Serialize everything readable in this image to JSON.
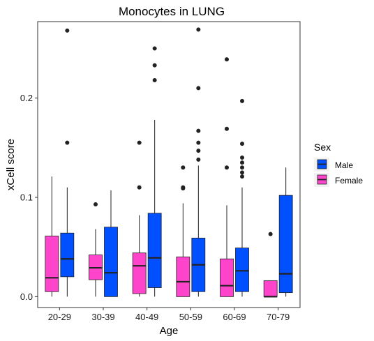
{
  "chart_data": {
    "type": "box",
    "title": "Monocytes in LUNG",
    "xlabel": "Age",
    "ylabel": "xCell score",
    "categories": [
      "20-29",
      "30-39",
      "40-49",
      "50-59",
      "60-69",
      "70-79"
    ],
    "ylim": [
      -0.011,
      0.277
    ],
    "yticks": [
      0.0,
      0.1,
      0.2
    ],
    "ytick_labels": [
      "0.0",
      "0.1",
      "0.2"
    ],
    "grid": false,
    "legend": {
      "title": "Sex",
      "position": "right",
      "entries": [
        {
          "label": "Male",
          "color": "#0050FF"
        },
        {
          "label": "Female",
          "color": "#FF44CC"
        }
      ]
    },
    "series": [
      {
        "name": "Female",
        "color": "#FF44CC",
        "boxes": [
          {
            "whisker_low": 0.0,
            "q1": 0.005,
            "median": 0.019,
            "q3": 0.061,
            "whisker_high": 0.121,
            "outliers": []
          },
          {
            "whisker_low": 0.0,
            "q1": 0.017,
            "median": 0.029,
            "q3": 0.042,
            "whisker_high": 0.068,
            "outliers": [
              0.093
            ]
          },
          {
            "whisker_low": 0.0,
            "q1": 0.003,
            "median": 0.031,
            "q3": 0.044,
            "whisker_high": 0.082,
            "outliers": [
              0.11,
              0.155
            ]
          },
          {
            "whisker_low": 0.0,
            "q1": 0.0,
            "median": 0.015,
            "q3": 0.04,
            "whisker_high": 0.094,
            "outliers": [
              0.109,
              0.11,
              0.13
            ]
          },
          {
            "whisker_low": 0.0,
            "q1": 0.0,
            "median": 0.011,
            "q3": 0.038,
            "whisker_high": 0.092,
            "outliers": [
              0.13,
              0.169,
              0.239
            ]
          },
          {
            "whisker_low": 0.0,
            "q1": 0.0,
            "median": 0.0,
            "q3": 0.016,
            "whisker_high": 0.016,
            "outliers": [
              0.063
            ]
          }
        ]
      },
      {
        "name": "Male",
        "color": "#0050FF",
        "boxes": [
          {
            "whisker_low": 0.0,
            "q1": 0.02,
            "median": 0.038,
            "q3": 0.064,
            "whisker_high": 0.11,
            "outliers": [
              0.155,
              0.268
            ]
          },
          {
            "whisker_low": 0.0,
            "q1": 0.0,
            "median": 0.024,
            "q3": 0.07,
            "whisker_high": 0.107,
            "outliers": []
          },
          {
            "whisker_low": 0.0,
            "q1": 0.009,
            "median": 0.039,
            "q3": 0.084,
            "whisker_high": 0.178,
            "outliers": [
              0.218,
              0.233,
              0.25
            ]
          },
          {
            "whisker_low": 0.0,
            "q1": 0.005,
            "median": 0.032,
            "q3": 0.059,
            "whisker_high": 0.132,
            "outliers": [
              0.138,
              0.147,
              0.155,
              0.167,
              0.21,
              0.269
            ]
          },
          {
            "whisker_low": 0.0,
            "q1": 0.005,
            "median": 0.026,
            "q3": 0.049,
            "whisker_high": 0.11,
            "outliers": [
              0.121,
              0.125,
              0.13,
              0.135,
              0.14,
              0.154,
              0.197
            ]
          },
          {
            "whisker_low": 0.0,
            "q1": 0.004,
            "median": 0.023,
            "q3": 0.102,
            "whisker_high": 0.13,
            "outliers": []
          }
        ]
      }
    ]
  }
}
